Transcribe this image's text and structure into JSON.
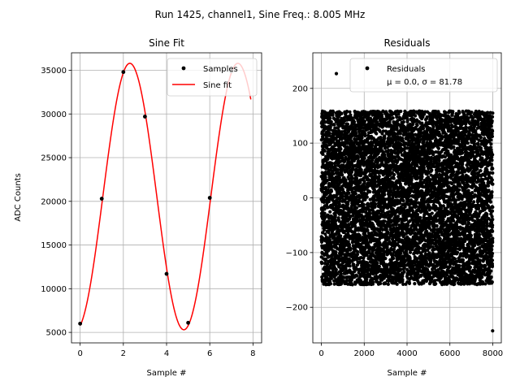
{
  "figure": {
    "suptitle": "Run 1425, channel1, Sine Freq.: 8.005 MHz"
  },
  "chart_data": [
    {
      "type": "line",
      "title": "Sine Fit",
      "xlabel": "Sample #",
      "ylabel": "ADC Counts",
      "xlim": [
        -0.4,
        8.4
      ],
      "ylim": [
        3800,
        37000
      ],
      "xticks": [
        0,
        2,
        4,
        6,
        8
      ],
      "yticks": [
        5000,
        10000,
        15000,
        20000,
        25000,
        30000,
        35000
      ],
      "grid": true,
      "legend_placement": "upper-right",
      "series": [
        {
          "name": "Samples",
          "style": "points",
          "color": "#000000",
          "x": [
            0,
            1,
            2,
            3,
            4,
            5,
            6,
            7
          ],
          "y": [
            6000,
            20300,
            34800,
            29700,
            11700,
            6100,
            20400,
            34900
          ]
        },
        {
          "name": "Sine fit",
          "style": "line",
          "color": "#ff0000",
          "x_range": [
            0,
            7.9
          ],
          "amplitude": 15250,
          "offset": 20550,
          "period": 5.0,
          "phase_peak_x": 2.3
        }
      ]
    },
    {
      "type": "scatter",
      "title": "Residuals",
      "xlabel": "Sample #",
      "ylabel": "",
      "xlim": [
        -400,
        8400
      ],
      "ylim": [
        -265,
        265
      ],
      "xticks": [
        0,
        2000,
        4000,
        6000,
        8000
      ],
      "yticks": [
        -200,
        -100,
        0,
        100,
        200
      ],
      "grid": true,
      "legend_placement": "upper-right",
      "legend_lines": [
        "Residuals",
        "μ = 0.0, σ = 81.78"
      ],
      "series": [
        {
          "name": "Residuals",
          "color": "#000000",
          "mu": 0.0,
          "sigma": 81.78,
          "n_points": 8000,
          "min": -243,
          "max": 227
        }
      ]
    }
  ]
}
